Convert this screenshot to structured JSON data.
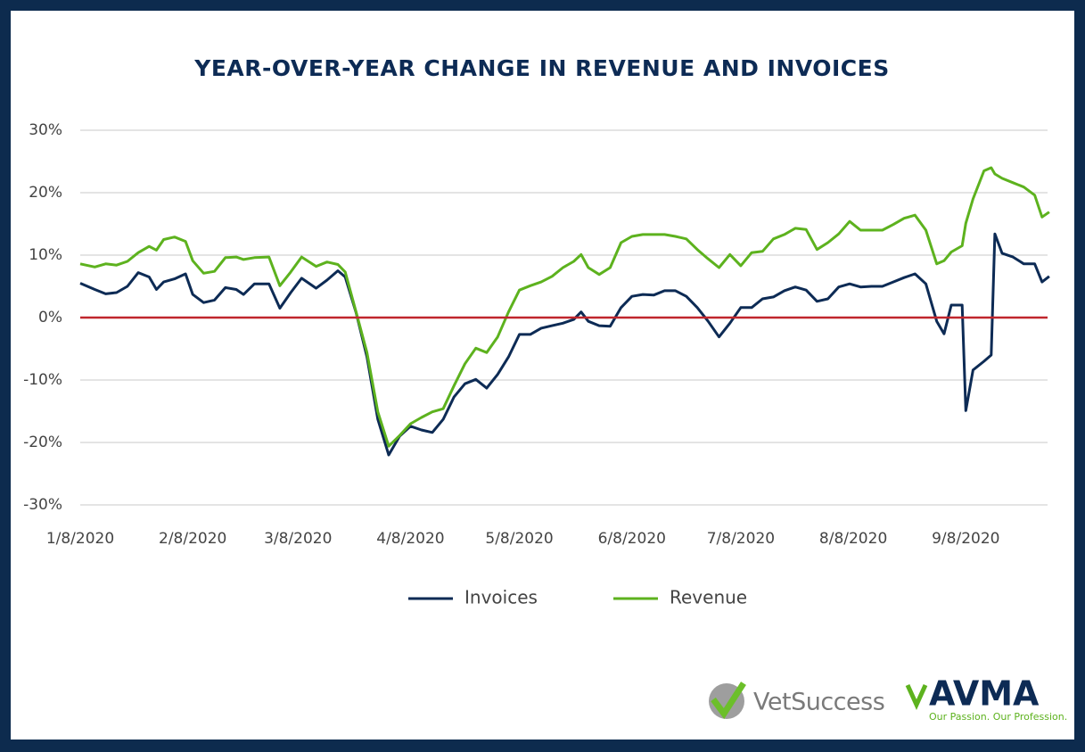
{
  "chart_data": {
    "type": "line",
    "title": "YEAR-OVER-YEAR CHANGE IN REVENUE AND INVOICES",
    "x": [
      "1/8/2020",
      "1/12/2020",
      "1/15/2020",
      "1/18/2020",
      "1/21/2020",
      "1/24/2020",
      "1/27/2020",
      "1/29/2020",
      "1/31/2020",
      "2/3/2020",
      "2/6/2020",
      "2/8/2020",
      "2/11/2020",
      "2/14/2020",
      "2/17/2020",
      "2/20/2020",
      "2/22/2020",
      "2/25/2020",
      "2/29/2020",
      "3/3/2020",
      "3/6/2020",
      "3/9/2020",
      "3/13/2020",
      "3/16/2020",
      "3/19/2020",
      "3/21/2020",
      "3/24/2020",
      "3/27/2020",
      "3/30/2020",
      "4/2/2020",
      "4/5/2020",
      "4/8/2020",
      "4/11/2020",
      "4/14/2020",
      "4/17/2020",
      "4/20/2020",
      "4/23/2020",
      "4/26/2020",
      "4/29/2020",
      "5/2/2020",
      "5/5/2020",
      "5/8/2020",
      "5/11/2020",
      "5/14/2020",
      "5/17/2020",
      "5/20/2020",
      "5/23/2020",
      "5/25/2020",
      "5/27/2020",
      "5/30/2020",
      "6/2/2020",
      "6/5/2020",
      "6/8/2020",
      "6/11/2020",
      "6/14/2020",
      "6/17/2020",
      "6/20/2020",
      "6/23/2020",
      "6/26/2020",
      "6/29/2020",
      "7/2/2020",
      "7/5/2020",
      "7/8/2020",
      "7/11/2020",
      "7/14/2020",
      "7/17/2020",
      "7/20/2020",
      "7/23/2020",
      "7/26/2020",
      "7/29/2020",
      "8/1/2020",
      "8/4/2020",
      "8/7/2020",
      "8/10/2020",
      "8/13/2020",
      "8/16/2020",
      "8/19/2020",
      "8/22/2020",
      "8/25/2020",
      "8/28/2020",
      "8/31/2020",
      "9/2/2020",
      "9/4/2020",
      "9/7/2020",
      "9/8/2020",
      "9/10/2020",
      "9/13/2020",
      "9/15/2020",
      "9/16/2020",
      "9/18/2020",
      "9/21/2020",
      "9/24/2020",
      "9/27/2020",
      "9/29/2020",
      "10/1/2020"
    ],
    "series": [
      {
        "name": "Invoices",
        "color": "#0d2b55",
        "values": [
          5.5,
          4.5,
          3.8,
          4,
          5,
          7.2,
          6.5,
          4.5,
          5.7,
          6.2,
          7,
          3.7,
          2.4,
          2.8,
          4.8,
          4.5,
          3.7,
          5.4,
          5.4,
          1.5,
          4,
          6.3,
          4.7,
          6,
          7.5,
          6.5,
          0.8,
          -6.3,
          -16.3,
          -22,
          -19,
          -17.4,
          -18,
          -18.4,
          -16.3,
          -12.7,
          -10.6,
          -9.9,
          -11.3,
          -9.1,
          -6.3,
          -2.7,
          -2.7,
          -1.7,
          -1.3,
          -0.9,
          -0.3,
          0.9,
          -0.6,
          -1.3,
          -1.4,
          1.6,
          3.4,
          3.7,
          3.6,
          4.3,
          4.3,
          3.4,
          1.6,
          -0.6,
          -3.1,
          -0.9,
          1.6,
          1.6,
          3,
          3.3,
          4.3,
          4.9,
          4.4,
          2.6,
          3,
          4.9,
          5.4,
          4.9,
          5,
          5,
          5.7,
          6.4,
          7,
          5.4,
          -0.6,
          -2.6,
          2,
          2,
          -14.9,
          -8.4,
          -7,
          -6,
          13.4,
          10.3,
          9.7,
          8.6,
          8.6,
          5.7,
          6.6
        ]
      },
      {
        "name": "Revenue",
        "color": "#5db21e",
        "values": [
          8.6,
          8.1,
          8.6,
          8.4,
          9,
          10.4,
          11.4,
          10.8,
          12.5,
          12.9,
          12.2,
          9.1,
          7.1,
          7.4,
          9.6,
          9.7,
          9.3,
          9.6,
          9.7,
          5.1,
          7.3,
          9.7,
          8.2,
          8.9,
          8.5,
          7.3,
          0.9,
          -5.6,
          -15.1,
          -20.6,
          -18.9,
          -17,
          -16,
          -15.1,
          -14.6,
          -10.9,
          -7.4,
          -4.9,
          -5.6,
          -3.1,
          0.9,
          4.4,
          5.1,
          5.7,
          6.6,
          8,
          9,
          10.1,
          8,
          6.9,
          8,
          12,
          13,
          13.3,
          13.3,
          13.3,
          13,
          12.6,
          10.9,
          9.4,
          8,
          10.1,
          8.3,
          10.4,
          10.6,
          12.6,
          13.3,
          14.3,
          14.1,
          10.9,
          12,
          13.4,
          15.4,
          14,
          14,
          14,
          14.9,
          15.9,
          16.4,
          14,
          8.6,
          9.1,
          10.5,
          11.5,
          15.1,
          19,
          23.5,
          24,
          23,
          22.3,
          21.6,
          20.9,
          19.6,
          16.1,
          16.9
        ]
      }
    ],
    "xlim": [
      "1/8/2020",
      "10/2/2020"
    ],
    "xticks": [
      "1/8/2020",
      "2/8/2020",
      "3/8/2020",
      "4/8/2020",
      "5/8/2020",
      "6/8/2020",
      "7/8/2020",
      "8/8/2020",
      "9/8/2020"
    ],
    "ylim": [
      -30,
      30
    ],
    "yticks": [
      {
        "value": -30,
        "label": "-30%"
      },
      {
        "value": -20,
        "label": "-20%"
      },
      {
        "value": -10,
        "label": "-10%"
      },
      {
        "value": 0,
        "label": "0%"
      },
      {
        "value": 10,
        "label": "10%"
      },
      {
        "value": 20,
        "label": "20%"
      },
      {
        "value": 30,
        "label": "30%"
      }
    ],
    "grid": true,
    "reference_line": {
      "value": 0,
      "color": "#c0262d"
    },
    "legend": "bottom"
  },
  "branding": {
    "vetsuccess": "VetSuccess",
    "avma": "AVMA",
    "avma_tagline": "Our Passion. Our Profession."
  }
}
